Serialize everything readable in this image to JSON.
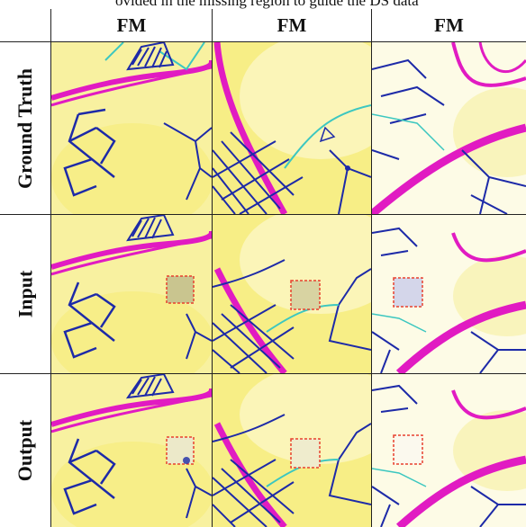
{
  "caption_fragment": "ovided in the missing region to guide the DS data",
  "columns": [
    "FM",
    "FM",
    "FM"
  ],
  "rows": [
    "Ground Truth",
    "Input",
    "Output"
  ],
  "colors": {
    "major_road": "#e11bc2",
    "minor_road": "#1d2aa8",
    "river": "#3cc7c0",
    "land_warm": "#f7f08c",
    "land_light": "#fdfbe6",
    "mask_border": "#e8402e"
  }
}
